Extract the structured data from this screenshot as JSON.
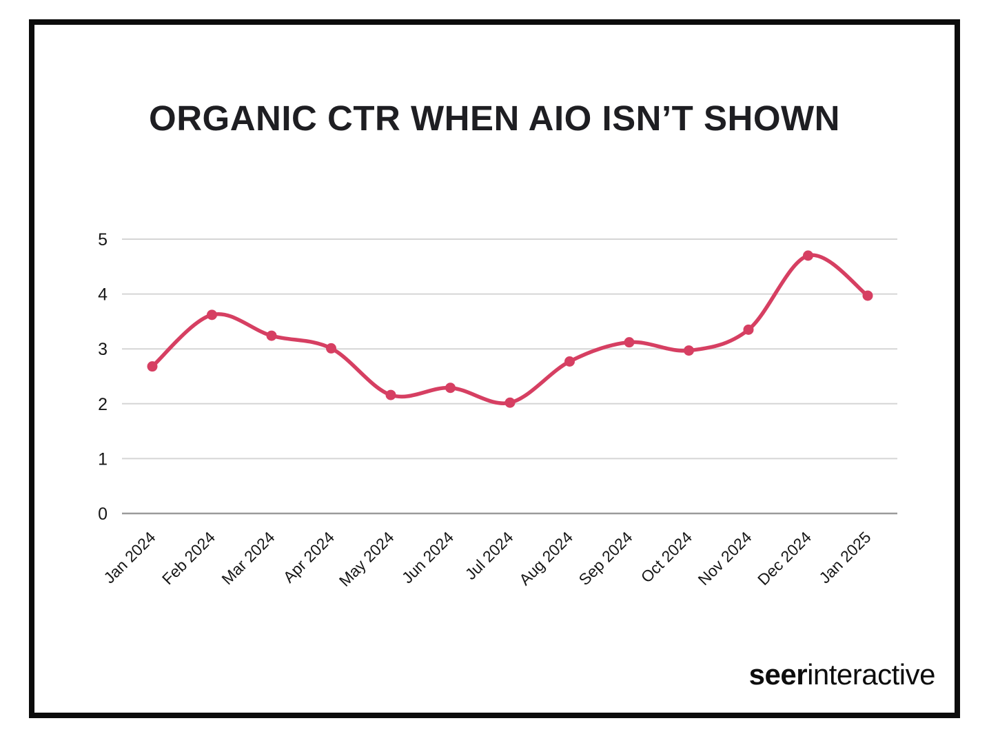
{
  "title": "ORGANIC CTR WHEN AIO ISN’T SHOWN",
  "logo": {
    "bold": "seer",
    "light": "interactive"
  },
  "colors": {
    "accent_line": "#d63f62",
    "frame_border": "#0c0c0c",
    "gridline": "#d5d5d5",
    "axis_baseline": "#9a9a9a",
    "title_text": "#1e1e22"
  },
  "chart_data": {
    "type": "line",
    "title": "ORGANIC CTR WHEN AIO ISN’T SHOWN",
    "categories": [
      "Jan 2024",
      "Feb 2024",
      "Mar 2024",
      "Apr 2024",
      "May 2024",
      "Jun 2024",
      "Jul 2024",
      "Aug 2024",
      "Sep 2024",
      "Oct 2024",
      "Nov 2024",
      "Dec 2024",
      "Jan 2025"
    ],
    "values": [
      2.68,
      3.62,
      3.24,
      3.01,
      2.16,
      2.29,
      2.02,
      2.77,
      3.12,
      2.97,
      3.35,
      4.7,
      3.97
    ],
    "xlabel": "",
    "ylabel": "",
    "ylim": [
      0,
      5
    ],
    "yticks": [
      0,
      1,
      2,
      3,
      4,
      5
    ],
    "grid": "horizontal",
    "legend": "none",
    "smooth": true,
    "marker": "circle",
    "line_color": "#d63f62"
  }
}
